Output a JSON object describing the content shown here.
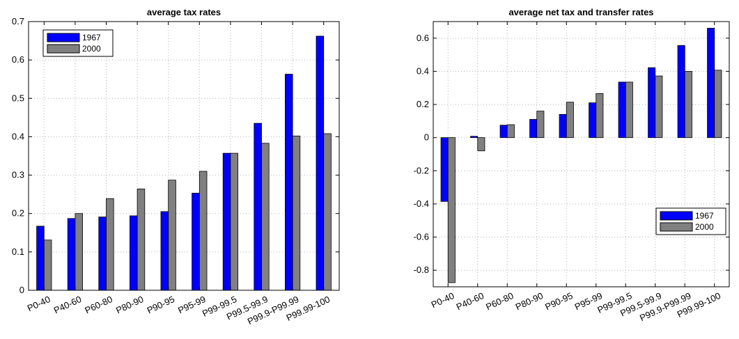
{
  "chart_data": [
    {
      "type": "bar",
      "title": "average tax rates",
      "categories": [
        "P0-40",
        "P40-60",
        "P60-80",
        "P80-90",
        "P90-95",
        "P95-99",
        "P99-99.5",
        "P99.5-99.9",
        "P99.9-P99.99",
        "P99.99-100"
      ],
      "series": [
        {
          "name": "1967",
          "color": "#0000ff",
          "values": [
            0.167,
            0.187,
            0.191,
            0.194,
            0.205,
            0.253,
            0.357,
            0.435,
            0.563,
            0.662
          ]
        },
        {
          "name": "2000",
          "color": "#808080",
          "values": [
            0.131,
            0.2,
            0.239,
            0.264,
            0.287,
            0.31,
            0.357,
            0.383,
            0.402,
            0.408
          ]
        }
      ],
      "ylim": [
        0,
        0.7
      ],
      "yticks": [
        "0",
        "0.1",
        "0.2",
        "0.3",
        "0.4",
        "0.5",
        "0.6",
        "0.7"
      ],
      "ytick_values": [
        0,
        0.1,
        0.2,
        0.3,
        0.4,
        0.5,
        0.6,
        0.7
      ],
      "grid": true,
      "legend": "top-left"
    },
    {
      "type": "bar",
      "title": "average net tax and transfer rates",
      "categories": [
        "P0-40",
        "P40-60",
        "P60-80",
        "P80-90",
        "P90-95",
        "P95-99",
        "P99-99.5",
        "P99.5-99.9",
        "P99.9-P99.99",
        "P99.99-100"
      ],
      "series": [
        {
          "name": "1967",
          "color": "#0000ff",
          "values": [
            -0.385,
            0.008,
            0.075,
            0.11,
            0.14,
            0.21,
            0.335,
            0.422,
            0.556,
            0.66
          ]
        },
        {
          "name": "2000",
          "color": "#808080",
          "values": [
            -0.875,
            -0.08,
            0.078,
            0.16,
            0.214,
            0.266,
            0.335,
            0.372,
            0.4,
            0.407
          ]
        }
      ],
      "ylim": [
        -0.9,
        0.7
      ],
      "yticks": [
        "-0.8",
        "-0.6",
        "-0.4",
        "-0.2",
        "0",
        "0.2",
        "0.4",
        "0.6"
      ],
      "ytick_values": [
        -0.8,
        -0.6,
        -0.4,
        -0.2,
        0,
        0.2,
        0.4,
        0.6
      ],
      "grid": true,
      "legend": "bottom-right"
    }
  ]
}
